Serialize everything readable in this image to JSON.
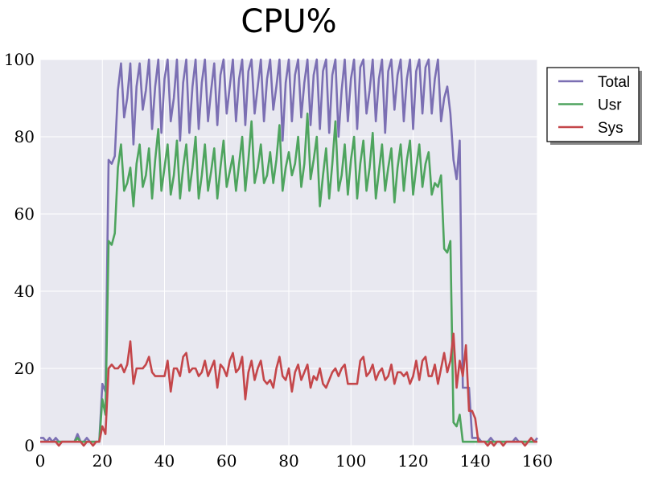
{
  "chart_data": {
    "type": "line",
    "title": "CPU%",
    "xlabel": "",
    "ylabel": "",
    "xlim": [
      0,
      160
    ],
    "ylim": [
      0,
      100
    ],
    "xticks": [
      0,
      20,
      40,
      60,
      80,
      100,
      120,
      140,
      160
    ],
    "yticks": [
      0,
      20,
      40,
      60,
      80,
      100
    ],
    "grid": true,
    "legend_position": "outside-top-right",
    "x_step": 1,
    "series": [
      {
        "name": "Total",
        "color": "#7b6fb3",
        "values": [
          2,
          2,
          1,
          2,
          1,
          2,
          1,
          1,
          1,
          1,
          1,
          1,
          3,
          1,
          1,
          2,
          1,
          1,
          1,
          1,
          16,
          14,
          74,
          73,
          75,
          92,
          99,
          85,
          90,
          99,
          78,
          93,
          99,
          87,
          92,
          100,
          82,
          93,
          100,
          81,
          95,
          100,
          84,
          90,
          100,
          79,
          94,
          100,
          81,
          93,
          100,
          82,
          94,
          100,
          84,
          92,
          99,
          83,
          96,
          100,
          86,
          93,
          100,
          84,
          95,
          100,
          83,
          97,
          100,
          86,
          93,
          100,
          84,
          95,
          100,
          87,
          93,
          100,
          79,
          94,
          100,
          84,
          96,
          100,
          85,
          94,
          100,
          83,
          96,
          100,
          82,
          97,
          100,
          81,
          96,
          100,
          80,
          92,
          100,
          84,
          95,
          100,
          82,
          98,
          100,
          86,
          92,
          100,
          84,
          95,
          100,
          81,
          97,
          100,
          87,
          96,
          100,
          84,
          95,
          100,
          82,
          97,
          100,
          86,
          98,
          100,
          86,
          95,
          100,
          84,
          90,
          93,
          86,
          74,
          69,
          79,
          15,
          15,
          15,
          2,
          2,
          2,
          1,
          1,
          1,
          2,
          1,
          1,
          1,
          1,
          1,
          1,
          1,
          2,
          1,
          1,
          1,
          1,
          1,
          1,
          2
        ]
      },
      {
        "name": "Usr",
        "color": "#4ea45e",
        "values": [
          1,
          1,
          1,
          1,
          1,
          1,
          1,
          1,
          1,
          1,
          1,
          1,
          2,
          1,
          1,
          1,
          1,
          1,
          1,
          1,
          12,
          8,
          53,
          52,
          55,
          72,
          78,
          66,
          68,
          72,
          62,
          73,
          78,
          67,
          70,
          77,
          64,
          74,
          82,
          66,
          72,
          78,
          65,
          70,
          79,
          64,
          72,
          78,
          66,
          72,
          80,
          64,
          70,
          78,
          66,
          71,
          77,
          64,
          72,
          79,
          67,
          71,
          75,
          66,
          73,
          80,
          66,
          74,
          84,
          68,
          72,
          78,
          68,
          70,
          76,
          68,
          74,
          83,
          66,
          72,
          76,
          70,
          73,
          80,
          67,
          73,
          86,
          69,
          74,
          80,
          62,
          70,
          77,
          64,
          73,
          84,
          66,
          70,
          78,
          65,
          74,
          80,
          64,
          73,
          79,
          66,
          72,
          81,
          64,
          71,
          78,
          66,
          72,
          77,
          63,
          72,
          78,
          66,
          74,
          79,
          65,
          72,
          78,
          67,
          73,
          76,
          65,
          68,
          67,
          70,
          51,
          50,
          53,
          6,
          5,
          8,
          1,
          1,
          1,
          1,
          1,
          1,
          1,
          1,
          1,
          1,
          1,
          1,
          1,
          1,
          1,
          1,
          1,
          1,
          1,
          1,
          1,
          1,
          1,
          1,
          1
        ]
      },
      {
        "name": "Sys",
        "color": "#c4464a",
        "values": [
          1,
          1,
          1,
          1,
          1,
          1,
          0,
          1,
          1,
          1,
          1,
          1,
          1,
          1,
          0,
          1,
          1,
          0,
          1,
          1,
          5,
          3,
          20,
          21,
          20,
          20,
          21,
          19,
          21,
          27,
          16,
          20,
          20,
          20,
          21,
          23,
          19,
          18,
          18,
          18,
          18,
          22,
          14,
          20,
          20,
          18,
          23,
          24,
          19,
          20,
          20,
          18,
          19,
          22,
          18,
          20,
          22,
          15,
          21,
          20,
          18,
          22,
          24,
          19,
          20,
          23,
          12,
          19,
          22,
          17,
          20,
          22,
          17,
          16,
          17,
          15,
          20,
          23,
          18,
          17,
          20,
          14,
          19,
          21,
          17,
          19,
          21,
          15,
          18,
          17,
          20,
          16,
          15,
          17,
          19,
          20,
          18,
          20,
          21,
          16,
          16,
          16,
          16,
          22,
          23,
          18,
          19,
          21,
          17,
          19,
          20,
          17,
          18,
          21,
          16,
          19,
          19,
          18,
          19,
          16,
          18,
          22,
          17,
          22,
          23,
          18,
          18,
          21,
          16,
          20,
          24,
          19,
          22,
          29,
          15,
          22,
          18,
          26,
          9,
          9,
          7,
          1,
          1,
          1,
          0,
          1,
          0,
          1,
          1,
          0,
          1,
          1,
          1,
          1,
          1,
          1,
          0,
          1,
          2,
          1,
          1
        ]
      }
    ]
  }
}
